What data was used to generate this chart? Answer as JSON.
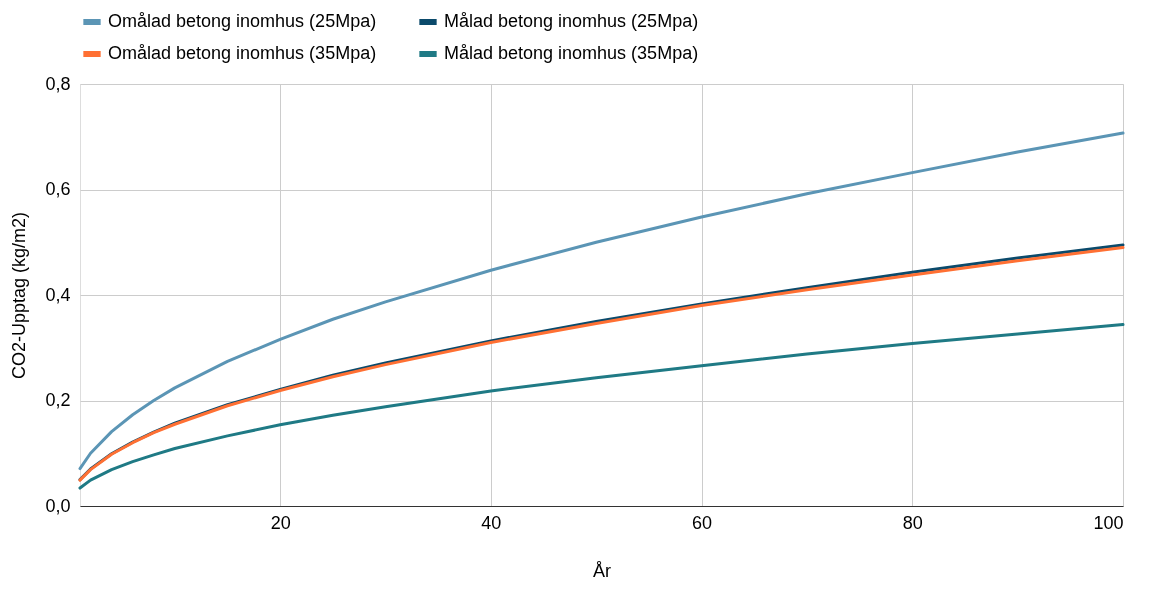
{
  "chart_data": {
    "type": "line",
    "xlabel": "År",
    "ylabel": "CO2-Upptag (kg/m2)",
    "x": [
      1,
      2,
      4,
      6,
      8,
      10,
      15,
      20,
      25,
      30,
      40,
      50,
      60,
      70,
      80,
      90,
      100
    ],
    "series": [
      {
        "name": "Omålad betong inomhus (25Mpa)",
        "color": "#5b95b5",
        "values": [
          0.071,
          0.1,
          0.141,
          0.173,
          0.2,
          0.224,
          0.274,
          0.316,
          0.354,
          0.387,
          0.447,
          0.5,
          0.548,
          0.592,
          0.632,
          0.671,
          0.707
        ]
      },
      {
        "name": "Målad betong inomhus (25Mpa)",
        "color": "#0b4a6b",
        "values": [
          0.05,
          0.07,
          0.099,
          0.121,
          0.14,
          0.157,
          0.192,
          0.221,
          0.248,
          0.271,
          0.313,
          0.35,
          0.383,
          0.414,
          0.443,
          0.47,
          0.495
        ]
      },
      {
        "name": "Omålad betong inomhus (35Mpa)",
        "color": "#ff7033",
        "values": [
          0.049,
          0.069,
          0.098,
          0.12,
          0.139,
          0.155,
          0.19,
          0.219,
          0.245,
          0.268,
          0.31,
          0.346,
          0.38,
          0.41,
          0.438,
          0.465,
          0.49
        ]
      },
      {
        "name": "Målad betong inomhus (35Mpa)",
        "color": "#1f7a85",
        "values": [
          0.034,
          0.049,
          0.069,
          0.084,
          0.097,
          0.109,
          0.133,
          0.154,
          0.172,
          0.188,
          0.218,
          0.243,
          0.266,
          0.288,
          0.308,
          0.326,
          0.344
        ]
      }
    ],
    "xlim": [
      1,
      100
    ],
    "xticks": [
      20,
      40,
      60,
      80,
      100
    ],
    "ylim": [
      0,
      0.8
    ],
    "yticks": [
      {
        "value": 0,
        "label": "0,0"
      },
      {
        "value": 0.2,
        "label": "0,2"
      },
      {
        "value": 0.4,
        "label": "0,4"
      },
      {
        "value": 0.6,
        "label": "0,6"
      },
      {
        "value": 0.8,
        "label": "0,8"
      }
    ],
    "grid": true,
    "legend": "top",
    "marker": "none",
    "line_style": "solid"
  }
}
